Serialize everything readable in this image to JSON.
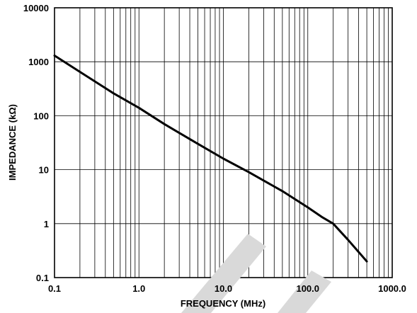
{
  "chart_data": {
    "type": "line",
    "xlabel": "FREQUENCY (MHz)",
    "ylabel": "IMPEDANCE (kΩ)",
    "x_scale": "log",
    "y_scale": "log",
    "xlim": [
      0.1,
      1000
    ],
    "ylim": [
      0.1,
      10000
    ],
    "x_ticks": [
      0.1,
      1,
      10,
      100,
      1000
    ],
    "x_tick_labels": [
      "0.1",
      "1.0",
      "10.0",
      "100.0",
      "1000.0"
    ],
    "y_ticks": [
      0.1,
      1,
      10,
      100,
      1000,
      10000
    ],
    "y_tick_labels": [
      "0.1",
      "1",
      "10",
      "100",
      "1000",
      "10000"
    ],
    "grid": true,
    "series": [
      {
        "x": [
          0.1,
          0.2,
          0.5,
          1,
          2,
          5,
          10,
          20,
          50,
          100,
          150,
          200,
          300,
          500
        ],
        "y": [
          1300,
          650,
          260,
          140,
          70,
          30,
          16,
          9,
          4,
          2,
          1.3,
          1,
          0.5,
          0.2
        ]
      }
    ]
  }
}
